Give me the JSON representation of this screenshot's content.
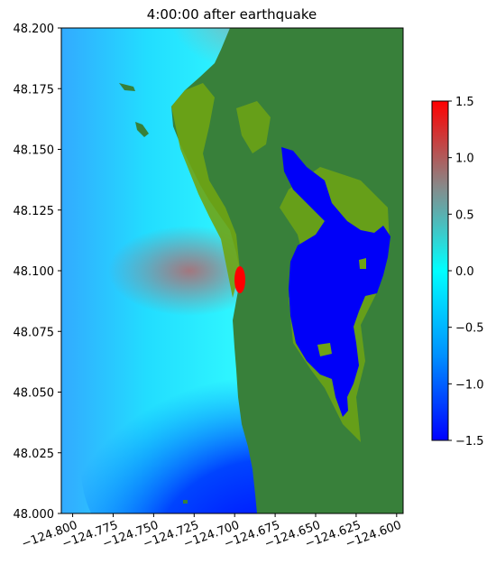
{
  "chart_data": {
    "type": "heatmap",
    "title": "4:00:00 after earthquake",
    "xlabel": "",
    "ylabel": "",
    "xlim": [
      -124.807,
      -124.596
    ],
    "ylim": [
      48.0,
      48.2
    ],
    "xticks": [
      -124.8,
      -124.775,
      -124.75,
      -124.725,
      -124.7,
      -124.675,
      -124.65,
      -124.625,
      -124.6
    ],
    "xtick_labels": [
      "−124.800",
      "−124.775",
      "−124.750",
      "−124.725",
      "−124.700",
      "−124.675",
      "−124.650",
      "−124.625",
      "−124.600"
    ],
    "yticks": [
      48.0,
      48.025,
      48.05,
      48.075,
      48.1,
      48.125,
      48.15,
      48.175,
      48.2
    ],
    "ytick_labels": [
      "48.000",
      "48.025",
      "48.050",
      "48.075",
      "48.100",
      "48.125",
      "48.150",
      "48.175",
      "48.200"
    ],
    "colorbar": {
      "range": [
        -1.5,
        1.5
      ],
      "ticks": [
        -1.5,
        -1.0,
        -0.5,
        0.0,
        0.5,
        1.0,
        1.5
      ],
      "tick_labels": [
        "−1.5",
        "−1.0",
        "−0.5",
        "0.0",
        "0.5",
        "1.0",
        "1.5"
      ],
      "colors": [
        "#0000ff",
        "#0090ff",
        "#00ffff",
        "#888888",
        "#ff0000"
      ]
    },
    "colors": {
      "land": "#38803a",
      "land_low": "#6fa414",
      "lake": "#0000f8"
    }
  }
}
